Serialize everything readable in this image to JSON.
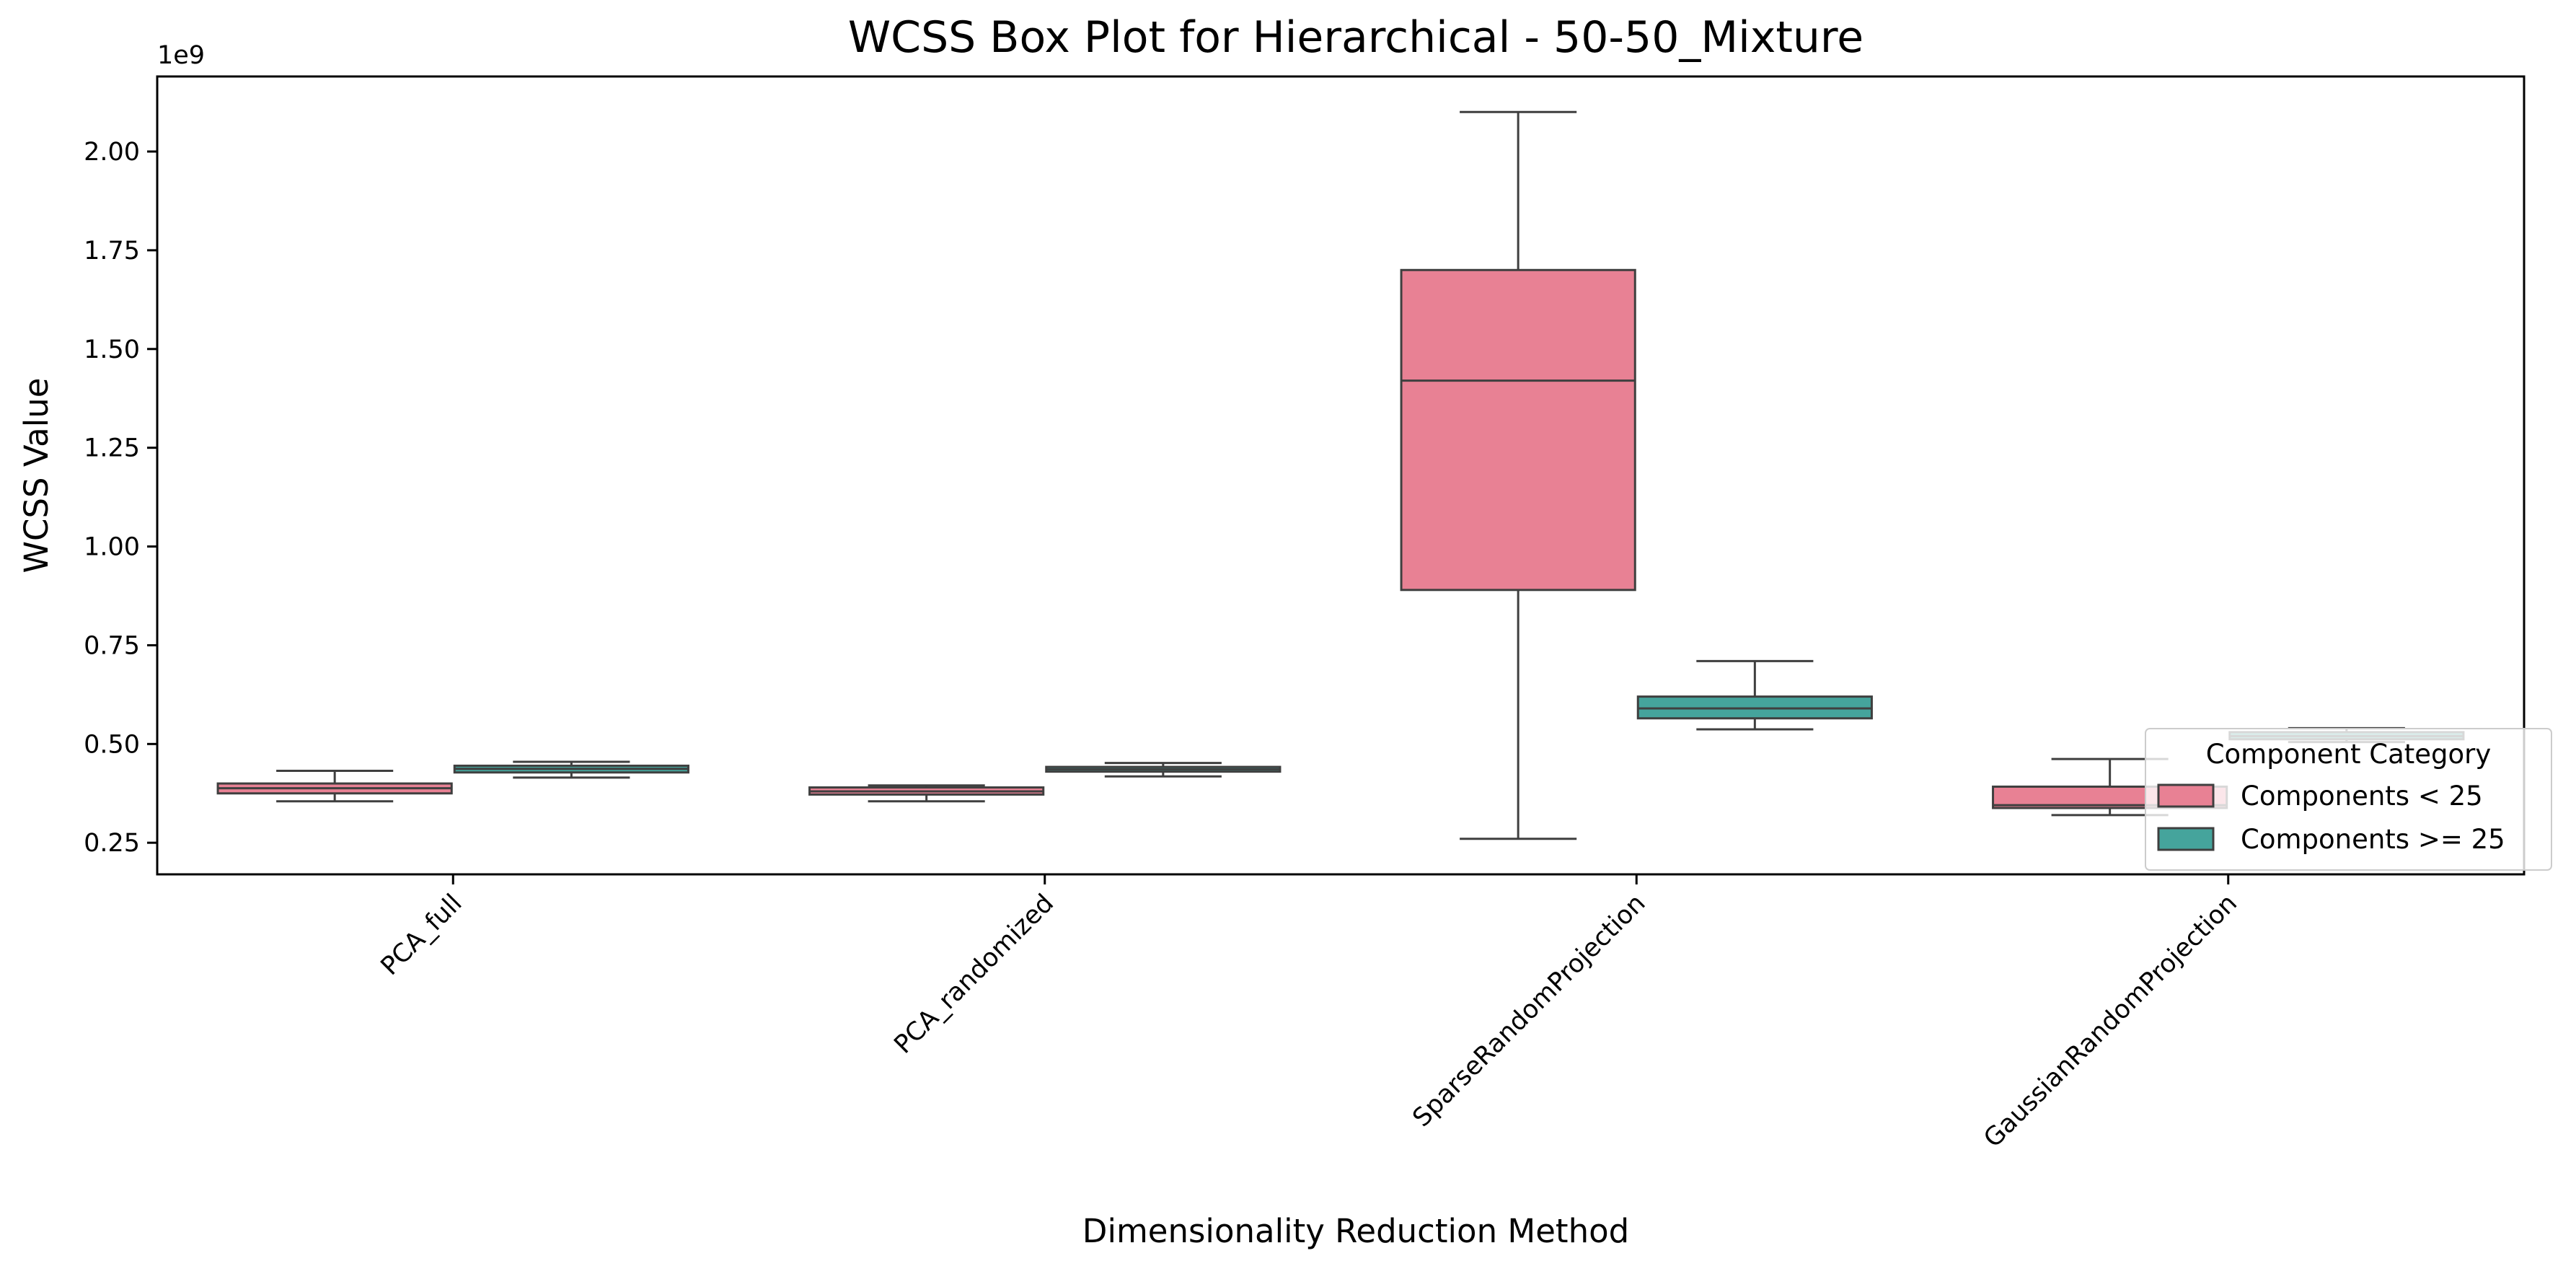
{
  "chart_data": {
    "type": "box",
    "title": "WCSS Box Plot for Hierarchical - 50-50_Mixture",
    "xlabel": "Dimensionality Reduction Method",
    "ylabel": "WCSS Value",
    "offset_label": "1e9",
    "ylim": [
      0.17,
      2.19
    ],
    "yticks": [
      0.25,
      0.5,
      0.75,
      1.0,
      1.25,
      1.5,
      1.75,
      2.0
    ],
    "ytick_labels": [
      "0.25",
      "0.50",
      "0.75",
      "1.00",
      "1.25",
      "1.50",
      "1.75",
      "2.00"
    ],
    "categories": [
      "PCA_full",
      "PCA_randomized",
      "SparseRandomProjection",
      "GaussianRandomProjection"
    ],
    "legend": {
      "title": "Component Category",
      "position": "lower-right"
    },
    "series": [
      {
        "name": "Components < 25",
        "color": "#e88194",
        "boxes": [
          {
            "whislo": 0.355,
            "q1": 0.375,
            "med": 0.388,
            "q3": 0.4,
            "whishi": 0.432
          },
          {
            "whislo": 0.355,
            "q1": 0.372,
            "med": 0.38,
            "q3": 0.39,
            "whishi": 0.395
          },
          {
            "whislo": 0.26,
            "q1": 0.89,
            "med": 1.42,
            "q3": 1.7,
            "whishi": 2.1
          },
          {
            "whislo": 0.32,
            "q1": 0.338,
            "med": 0.345,
            "q3": 0.392,
            "whishi": 0.462
          }
        ]
      },
      {
        "name": "Components >= 25",
        "color": "#45a49c",
        "boxes": [
          {
            "whislo": 0.415,
            "q1": 0.428,
            "med": 0.437,
            "q3": 0.445,
            "whishi": 0.455
          },
          {
            "whislo": 0.418,
            "q1": 0.43,
            "med": 0.436,
            "q3": 0.442,
            "whishi": 0.452
          },
          {
            "whislo": 0.537,
            "q1": 0.565,
            "med": 0.59,
            "q3": 0.62,
            "whishi": 0.71
          },
          {
            "whislo": 0.505,
            "q1": 0.512,
            "med": 0.52,
            "q3": 0.53,
            "whishi": 0.54
          }
        ]
      }
    ]
  }
}
